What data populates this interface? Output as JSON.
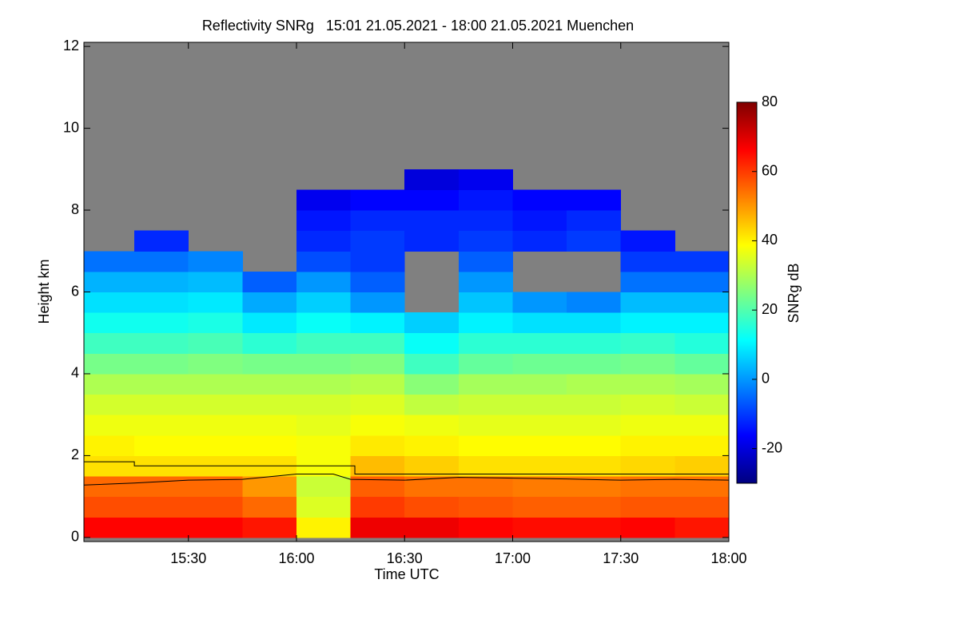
{
  "chart_data": {
    "type": "heatmap",
    "title": "Reflectivity SNRg   15:01 21.05.2021 - 18:00 21.05.2021 Muenchen",
    "x_label": "Time UTC",
    "y_label": "Height km",
    "colorbar_label": "SNRg dB",
    "xlim": [
      15.0167,
      18.0
    ],
    "xticks": [
      {
        "value": 15.5,
        "label": "15:30"
      },
      {
        "value": 16,
        "label": "16:00"
      },
      {
        "value": 16.5,
        "label": "16:30"
      },
      {
        "value": 17,
        "label": "17:00"
      },
      {
        "value": 17.5,
        "label": "17:30"
      },
      {
        "value": 18,
        "label": "18:00"
      }
    ],
    "ylim": [
      -0.1,
      12.1
    ],
    "yticks": [
      0,
      2,
      4,
      6,
      8,
      10,
      12
    ],
    "zlim": [
      -30,
      80
    ],
    "zticks": [
      -20,
      0,
      20,
      40,
      60,
      80
    ],
    "colormap": [
      "#00007f",
      "#0000ff",
      "#0080ff",
      "#00ffff",
      "#80ff80",
      "#ffff00",
      "#ff8000",
      "#ff0000",
      "#7f0000"
    ],
    "background": "#808080",
    "x_edges": [
      15.0167,
      15.25,
      15.5,
      15.75,
      16,
      16.25,
      16.5,
      16.75,
      17,
      17.25,
      17.5,
      17.75,
      18
    ],
    "y_edges": [
      0,
      0.5,
      1,
      1.5,
      2,
      2.5,
      3,
      3.5,
      4,
      4.5,
      5,
      5.5,
      6,
      6.5,
      7,
      7.5,
      8,
      8.5,
      9
    ],
    "z": [
      [
        66,
        66,
        66,
        64,
        40,
        68,
        68,
        66,
        65,
        65,
        66,
        64
      ],
      [
        58,
        58,
        58,
        55,
        35,
        60,
        58,
        57,
        56,
        56,
        57,
        57
      ],
      [
        55,
        55,
        55,
        50,
        33,
        56,
        54,
        54,
        53,
        53,
        54,
        54
      ],
      [
        42,
        42,
        42,
        42,
        38,
        46,
        44,
        42,
        42,
        42,
        43,
        44
      ],
      [
        40,
        39,
        39,
        39,
        38,
        41,
        40,
        39,
        39,
        39,
        40,
        40
      ],
      [
        37,
        37,
        37,
        37,
        36,
        38,
        37,
        36,
        36,
        36,
        37,
        37
      ],
      [
        34,
        34,
        34,
        34,
        34,
        35,
        32,
        33,
        33,
        33,
        34,
        33
      ],
      [
        30,
        30,
        30,
        30,
        30,
        31,
        26,
        29,
        29,
        30,
        30,
        29
      ],
      [
        24,
        24,
        25,
        24,
        24,
        25,
        18,
        22,
        23,
        23,
        24,
        22
      ],
      [
        18,
        18,
        19,
        16,
        18,
        18,
        12,
        16,
        16,
        16,
        17,
        15
      ],
      [
        13,
        13,
        14,
        9,
        12,
        10,
        6,
        10,
        8,
        8,
        10,
        10
      ],
      [
        8,
        8,
        9,
        2,
        6,
        0,
        null,
        5,
        0,
        -2,
        4,
        4
      ],
      [
        3,
        3,
        4,
        -6,
        0,
        -6,
        null,
        0,
        null,
        null,
        -4,
        -4
      ],
      [
        -4,
        -4,
        -2,
        null,
        -8,
        -10,
        null,
        -6,
        null,
        null,
        -10,
        -10
      ],
      [
        null,
        -12,
        null,
        null,
        -12,
        -10,
        -12,
        -10,
        -12,
        -10,
        -14,
        null
      ],
      [
        null,
        null,
        null,
        null,
        -14,
        -12,
        -12,
        -12,
        -14,
        -12,
        null,
        null
      ],
      [
        null,
        null,
        null,
        null,
        -18,
        -16,
        -16,
        -14,
        -16,
        -16,
        null,
        null
      ],
      [
        null,
        null,
        null,
        null,
        null,
        null,
        -20,
        -18,
        null,
        null,
        null,
        null
      ]
    ],
    "lines": [
      {
        "color": "#000000",
        "x": [
          15.0167,
          15.25,
          15.25,
          16.27,
          16.27,
          18
        ],
        "y": [
          1.85,
          1.85,
          1.75,
          1.75,
          1.55,
          1.55
        ]
      },
      {
        "color": "#000000",
        "x": [
          15.0167,
          15.25,
          15.5,
          15.75,
          16,
          16.17,
          16.25,
          16.5,
          16.75,
          17,
          17.25,
          17.5,
          17.75,
          18
        ],
        "y": [
          1.28,
          1.33,
          1.4,
          1.42,
          1.55,
          1.55,
          1.42,
          1.4,
          1.47,
          1.45,
          1.43,
          1.4,
          1.42,
          1.4
        ]
      }
    ]
  }
}
